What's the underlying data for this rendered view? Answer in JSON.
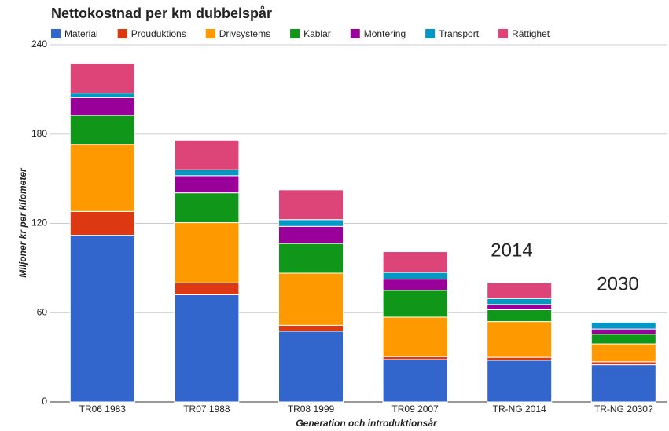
{
  "chart_data": {
    "type": "stacked_bar",
    "title": "Nettokostnad per km dubbelspår",
    "xlabel": "Generation och introduktionsår",
    "ylabel": "Miljoner kr per kilometer",
    "categories": [
      "TR06 1983",
      "TR07 1988",
      "TR08 1999",
      "TR09 2007",
      "TR-NG 2014",
      "TR-NG 2030?"
    ],
    "series": [
      {
        "name": "Material",
        "color": "#3366cc",
        "values": [
          112,
          72,
          47.5,
          28.5,
          28,
          25
        ]
      },
      {
        "name": "Prouduktions",
        "color": "#dc3912",
        "values": [
          16,
          8,
          4,
          2,
          2,
          2
        ]
      },
      {
        "name": "Drivsystems",
        "color": "#ff9900",
        "values": [
          45,
          40.5,
          35,
          26.5,
          24,
          12
        ]
      },
      {
        "name": "Kablar",
        "color": "#109618",
        "values": [
          19.5,
          20,
          20,
          18,
          8,
          6.5
        ]
      },
      {
        "name": "Montering",
        "color": "#990099",
        "values": [
          12,
          11.5,
          11.5,
          7.5,
          3.5,
          3.5
        ]
      },
      {
        "name": "Transport",
        "color": "#0099c6",
        "values": [
          3,
          4,
          4.5,
          4.5,
          4,
          4.5
        ]
      },
      {
        "name": "Rättighet",
        "color": "#dd4477",
        "values": [
          20,
          20,
          20,
          14,
          10.5,
          0
        ]
      }
    ],
    "ylim": [
      0,
      240
    ],
    "yticks": [
      0,
      60,
      120,
      180,
      240
    ],
    "grid": true,
    "annotations": [
      "2014",
      "2030"
    ]
  }
}
